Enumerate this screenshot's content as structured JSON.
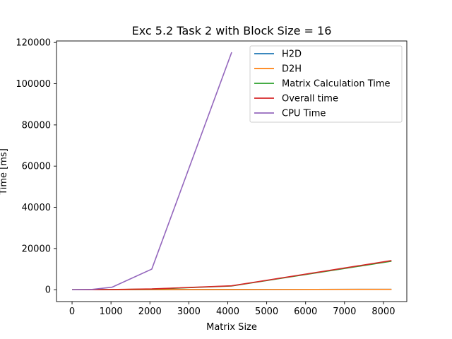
{
  "chart_data": {
    "type": "line",
    "title": "Exc 5.2 Task 2 with Block Size = 16",
    "xlabel": "Matrix Size",
    "ylabel": "Time [ms]",
    "xlim": [
      -400,
      8600
    ],
    "ylim": [
      -5750,
      120750
    ],
    "xticks": [
      0,
      1000,
      2000,
      3000,
      4000,
      5000,
      6000,
      7000,
      8000
    ],
    "yticks": [
      0,
      20000,
      40000,
      60000,
      80000,
      100000,
      120000
    ],
    "x": [
      16,
      512,
      1024,
      2048,
      4096,
      8192
    ],
    "grid": false,
    "legend_position": "top-right",
    "series": [
      {
        "name": "H2D",
        "color": "#1f77b4",
        "values": [
          0,
          5,
          15,
          45,
          100,
          200
        ]
      },
      {
        "name": "D2H",
        "color": "#ff7f0e",
        "values": [
          0,
          5,
          15,
          45,
          100,
          200
        ]
      },
      {
        "name": "Matrix Calculation Time",
        "color": "#2ca02c",
        "values": [
          0,
          20,
          80,
          300,
          1800,
          13800
        ]
      },
      {
        "name": "Overall time",
        "color": "#d62728",
        "values": [
          0,
          30,
          110,
          400,
          1900,
          14100
        ]
      },
      {
        "name": "CPU Time",
        "color": "#9467bd",
        "values": [
          0,
          150,
          1200,
          10000,
          115000,
          null
        ]
      }
    ]
  }
}
